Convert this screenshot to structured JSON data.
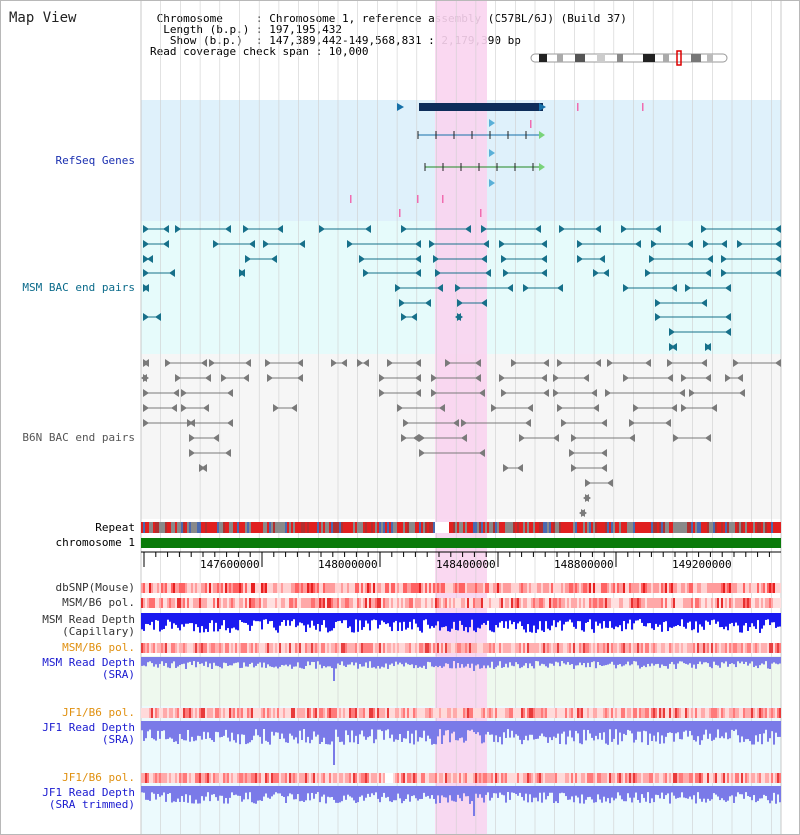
{
  "header": {
    "title": "Map View",
    "info_lines": [
      " Chromosome     : Chromosome 1, reference assembly (C57BL/6J) (Build 37)",
      "  Length (b.p.) : 197,195,432",
      "   Show (b.p.)  : 147,389,442-149,568,831 : 2,179,390 bp",
      "Read coverage check span : 10,000"
    ]
  },
  "tracks": {
    "refseq_genes": "RefSeq Genes",
    "msm_bac": "MSM BAC end pairs",
    "b6n_bac": "B6N BAC end pairs",
    "repeat": "Repeat",
    "chromosome": "chromosome 1",
    "dbsnp": "dbSNP(Mouse)",
    "msm_b6_pol": "MSM/B6 pol.",
    "msm_depth_cap_1": "MSM Read Depth",
    "msm_depth_cap_2": "(Capillary)",
    "msm_b6_pol_2": "MSM/B6 pol.",
    "msm_depth_sra_1": "MSM Read Depth",
    "msm_depth_sra_2": "(SRA)",
    "jf1_b6_pol": "JF1/B6 pol.",
    "jf1_depth_sra_1": "JF1 Read Depth",
    "jf1_depth_sra_2": "(SRA)",
    "jf1_b6_pol_2": "JF1/B6 pol.",
    "jf1_depth_trim_1": "JF1 Read Depth",
    "jf1_depth_trim_2": "(SRA trimmed)"
  },
  "ruler": {
    "ticks": [
      "147600000",
      "148000000",
      "148400000",
      "148800000",
      "149200000"
    ]
  },
  "colors": {
    "highlight": "#f9d4f0",
    "refseq_bg": "#dff1fb",
    "msm_bg": "#e6fbfb",
    "b6n_bg": "#f6f6f6",
    "gene_dark": "#0d2d5a",
    "msm_glyph": "#17708a",
    "b6n_glyph": "#7a7a7a",
    "chrom_green": "#0a7a0a",
    "msm_label": "#0a6a8a",
    "refseq_label": "#1a2fb0",
    "depth_blue": "#1a1af0",
    "depth_violet": "#7a7ae8",
    "pol_orange": "#e09010",
    "sra_label": "#1a1ad0"
  }
}
